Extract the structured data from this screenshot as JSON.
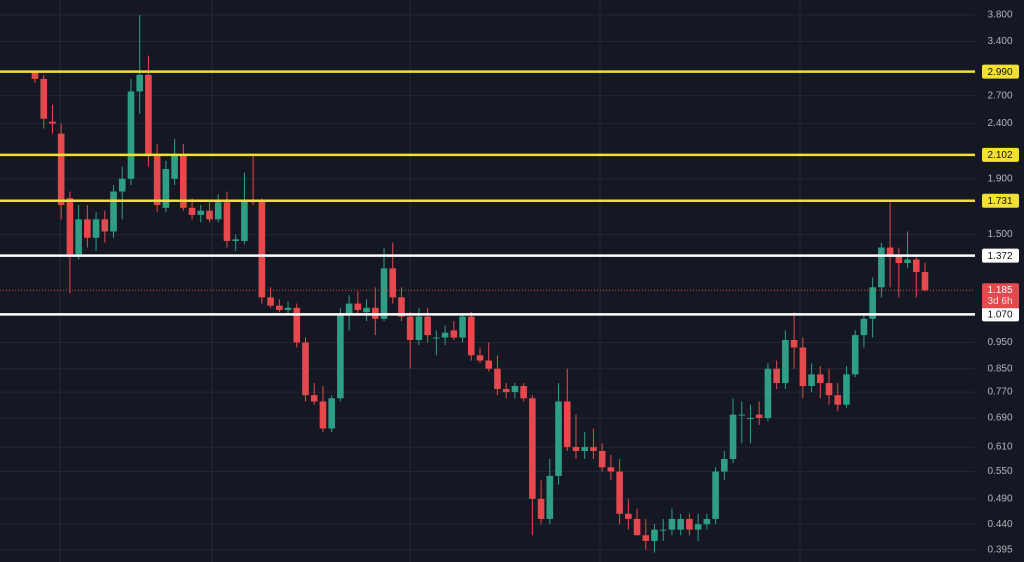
{
  "chart_data": {
    "type": "candlestick",
    "log_scale": true,
    "grid": true,
    "up_color": "#2e9e85",
    "down_color": "#e5484d",
    "ylim": [
      0.375,
      4.05
    ],
    "yticks": [
      {
        "value": 3.8,
        "label": "3.800"
      },
      {
        "value": 3.4,
        "label": "3.400"
      },
      {
        "value": 2.7,
        "label": "2.700"
      },
      {
        "value": 2.4,
        "label": "2.400"
      },
      {
        "value": 1.9,
        "label": "1.900"
      },
      {
        "value": 1.5,
        "label": "1.500"
      },
      {
        "value": 0.95,
        "label": "0.950"
      },
      {
        "value": 0.85,
        "label": "0.850"
      },
      {
        "value": 0.77,
        "label": "0.770"
      },
      {
        "value": 0.69,
        "label": "0.690"
      },
      {
        "value": 0.61,
        "label": "0.610"
      },
      {
        "value": 0.55,
        "label": "0.550"
      },
      {
        "value": 0.49,
        "label": "0.490"
      },
      {
        "value": 0.44,
        "label": "0.440"
      },
      {
        "value": 0.395,
        "label": "0.395"
      }
    ],
    "levels": [
      {
        "value": 2.99,
        "label": "2.990",
        "color": "#f2e035"
      },
      {
        "value": 2.102,
        "label": "2.102",
        "color": "#f2e035"
      },
      {
        "value": 1.731,
        "label": "1.731",
        "color": "#f2e035"
      },
      {
        "value": 1.372,
        "label": "1.372",
        "color": "#ffffff"
      },
      {
        "value": 1.07,
        "label": "1.070",
        "color": "#ffffff"
      }
    ],
    "current": {
      "value": 1.185,
      "label": "1.185",
      "countdown": "3d 6h"
    },
    "candles": [
      [
        2.98,
        3.0,
        2.85,
        2.9
      ],
      [
        2.9,
        2.95,
        2.35,
        2.45
      ],
      [
        2.42,
        2.6,
        2.3,
        2.4
      ],
      [
        2.3,
        2.4,
        1.6,
        1.7
      ],
      [
        1.75,
        1.8,
        1.17,
        1.38
      ],
      [
        1.38,
        1.7,
        1.35,
        1.6
      ],
      [
        1.6,
        1.7,
        1.42,
        1.48
      ],
      [
        1.48,
        1.65,
        1.4,
        1.6
      ],
      [
        1.6,
        1.66,
        1.45,
        1.52
      ],
      [
        1.52,
        1.85,
        1.48,
        1.8
      ],
      [
        1.8,
        2.0,
        1.6,
        1.9
      ],
      [
        1.9,
        2.9,
        1.85,
        2.75
      ],
      [
        2.75,
        3.8,
        2.5,
        2.95
      ],
      [
        2.95,
        3.2,
        2.0,
        2.1
      ],
      [
        2.1,
        2.2,
        1.65,
        1.7
      ],
      [
        1.68,
        2.05,
        1.65,
        1.98
      ],
      [
        1.9,
        2.25,
        1.85,
        2.1
      ],
      [
        2.1,
        2.2,
        1.66,
        1.68
      ],
      [
        1.68,
        1.75,
        1.6,
        1.63
      ],
      [
        1.63,
        1.7,
        1.58,
        1.66
      ],
      [
        1.66,
        1.72,
        1.58,
        1.6
      ],
      [
        1.6,
        1.78,
        1.58,
        1.72
      ],
      [
        1.72,
        1.8,
        1.42,
        1.46
      ],
      [
        1.46,
        1.5,
        1.4,
        1.47
      ],
      [
        1.46,
        1.95,
        1.44,
        1.73
      ],
      [
        1.73,
        2.1,
        1.7,
        1.72
      ],
      [
        1.73,
        1.75,
        1.12,
        1.15
      ],
      [
        1.15,
        1.2,
        1.1,
        1.11
      ],
      [
        1.11,
        1.14,
        1.08,
        1.09
      ],
      [
        1.09,
        1.13,
        1.07,
        1.1
      ],
      [
        1.1,
        1.12,
        0.93,
        0.95
      ],
      [
        0.95,
        0.97,
        0.74,
        0.76
      ],
      [
        0.76,
        0.8,
        0.73,
        0.74
      ],
      [
        0.74,
        0.79,
        0.65,
        0.66
      ],
      [
        0.66,
        0.76,
        0.65,
        0.75
      ],
      [
        0.75,
        1.1,
        0.74,
        1.07
      ],
      [
        1.07,
        1.16,
        1.0,
        1.12
      ],
      [
        1.12,
        1.18,
        1.07,
        1.09
      ],
      [
        1.08,
        1.14,
        1.04,
        1.1
      ],
      [
        1.1,
        1.2,
        0.98,
        1.05
      ],
      [
        1.05,
        1.42,
        1.04,
        1.3
      ],
      [
        1.3,
        1.45,
        1.12,
        1.15
      ],
      [
        1.15,
        1.2,
        1.04,
        1.06
      ],
      [
        1.06,
        1.08,
        0.85,
        0.96
      ],
      [
        0.96,
        1.1,
        0.94,
        1.06
      ],
      [
        1.06,
        1.1,
        0.95,
        0.98
      ],
      [
        0.97,
        1.0,
        0.9,
        0.97
      ],
      [
        0.97,
        1.02,
        0.94,
        0.99
      ],
      [
        1.0,
        1.04,
        0.96,
        0.97
      ],
      [
        0.97,
        1.07,
        0.95,
        1.06
      ],
      [
        1.06,
        1.08,
        0.88,
        0.9
      ],
      [
        0.9,
        0.93,
        0.87,
        0.88
      ],
      [
        0.88,
        0.95,
        0.84,
        0.85
      ],
      [
        0.85,
        0.9,
        0.76,
        0.78
      ],
      [
        0.78,
        0.8,
        0.75,
        0.77
      ],
      [
        0.77,
        0.8,
        0.75,
        0.79
      ],
      [
        0.79,
        0.8,
        0.74,
        0.75
      ],
      [
        0.75,
        0.76,
        0.42,
        0.49
      ],
      [
        0.49,
        0.53,
        0.44,
        0.45
      ],
      [
        0.45,
        0.58,
        0.44,
        0.54
      ],
      [
        0.54,
        0.8,
        0.52,
        0.74
      ],
      [
        0.74,
        0.85,
        0.6,
        0.61
      ],
      [
        0.61,
        0.7,
        0.58,
        0.6
      ],
      [
        0.6,
        0.65,
        0.58,
        0.61
      ],
      [
        0.61,
        0.66,
        0.58,
        0.6
      ],
      [
        0.6,
        0.62,
        0.55,
        0.56
      ],
      [
        0.56,
        0.59,
        0.53,
        0.55
      ],
      [
        0.55,
        0.58,
        0.44,
        0.46
      ],
      [
        0.46,
        0.49,
        0.43,
        0.45
      ],
      [
        0.45,
        0.47,
        0.42,
        0.42
      ],
      [
        0.42,
        0.45,
        0.395,
        0.41
      ],
      [
        0.41,
        0.44,
        0.39,
        0.43
      ],
      [
        0.43,
        0.45,
        0.41,
        0.43
      ],
      [
        0.43,
        0.47,
        0.42,
        0.45
      ],
      [
        0.43,
        0.46,
        0.42,
        0.45
      ],
      [
        0.45,
        0.46,
        0.42,
        0.43
      ],
      [
        0.43,
        0.46,
        0.41,
        0.44
      ],
      [
        0.44,
        0.46,
        0.43,
        0.45
      ],
      [
        0.45,
        0.56,
        0.44,
        0.55
      ],
      [
        0.55,
        0.6,
        0.53,
        0.58
      ],
      [
        0.58,
        0.75,
        0.57,
        0.7
      ],
      [
        0.7,
        0.74,
        0.62,
        0.7
      ],
      [
        0.69,
        0.73,
        0.62,
        0.69
      ],
      [
        0.7,
        0.74,
        0.67,
        0.69
      ],
      [
        0.69,
        0.87,
        0.68,
        0.85
      ],
      [
        0.85,
        0.88,
        0.78,
        0.8
      ],
      [
        0.8,
        1.0,
        0.78,
        0.96
      ],
      [
        0.96,
        1.08,
        0.85,
        0.93
      ],
      [
        0.93,
        0.97,
        0.75,
        0.79
      ],
      [
        0.79,
        0.87,
        0.77,
        0.83
      ],
      [
        0.83,
        0.86,
        0.75,
        0.8
      ],
      [
        0.8,
        0.85,
        0.73,
        0.76
      ],
      [
        0.76,
        0.8,
        0.71,
        0.73
      ],
      [
        0.73,
        0.86,
        0.72,
        0.83
      ],
      [
        0.83,
        1.0,
        0.82,
        0.98
      ],
      [
        0.98,
        1.07,
        0.93,
        1.05
      ],
      [
        1.05,
        1.25,
        0.97,
        1.2
      ],
      [
        1.2,
        1.45,
        1.15,
        1.42
      ],
      [
        1.42,
        1.72,
        1.2,
        1.37
      ],
      [
        1.37,
        1.42,
        1.15,
        1.33
      ],
      [
        1.33,
        1.52,
        1.3,
        1.35
      ],
      [
        1.35,
        1.37,
        1.15,
        1.28
      ],
      [
        1.28,
        1.33,
        1.18,
        1.185
      ]
    ]
  }
}
